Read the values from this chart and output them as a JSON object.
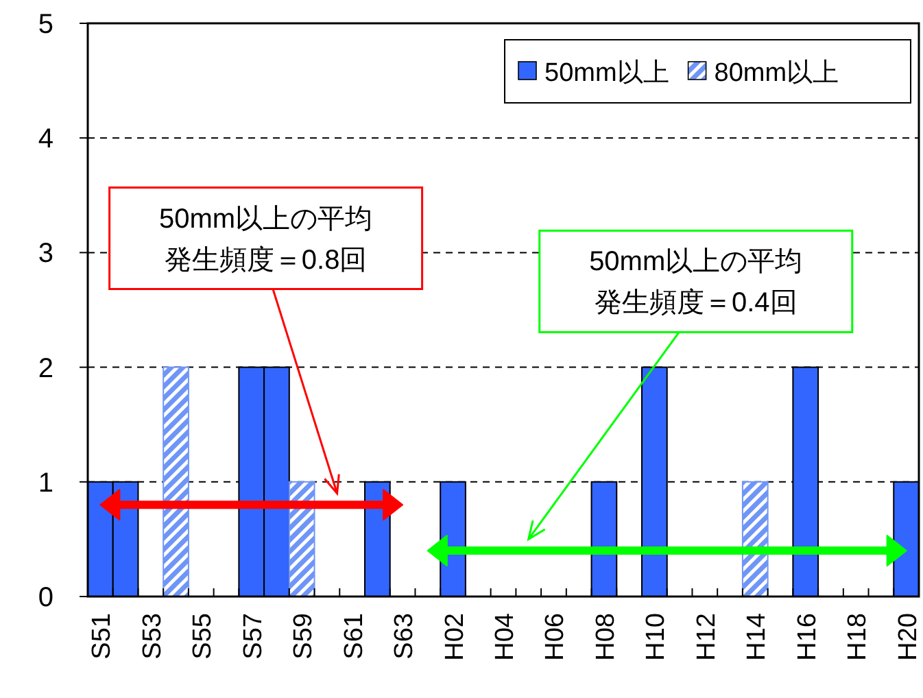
{
  "chart_data": {
    "type": "bar",
    "categories": [
      "S51",
      null,
      "S53",
      null,
      "S55",
      null,
      "S57",
      null,
      "S59",
      null,
      "S61",
      null,
      "S63",
      null,
      "H02",
      null,
      "H04",
      null,
      "H06",
      null,
      "H08",
      null,
      "H10",
      null,
      "H12",
      null,
      "H14",
      null,
      "H16",
      null,
      "H18",
      null,
      "H20"
    ],
    "series": [
      {
        "name": "50mm以上",
        "color": "#3366ff",
        "values": [
          1,
          1,
          0,
          null,
          0,
          0,
          2,
          2,
          null,
          0,
          0,
          1,
          0,
          0,
          1,
          0,
          0,
          0,
          0,
          0,
          1,
          0,
          2,
          0,
          0,
          0,
          null,
          0,
          2,
          0,
          0,
          0,
          1
        ]
      },
      {
        "name": "80mm以上",
        "color": "#6f95f7",
        "values": [
          null,
          null,
          null,
          2,
          null,
          null,
          null,
          null,
          1,
          null,
          null,
          null,
          null,
          null,
          null,
          null,
          null,
          null,
          null,
          null,
          null,
          null,
          null,
          null,
          null,
          null,
          1,
          null,
          null,
          null,
          null,
          null,
          null
        ]
      }
    ],
    "ylim": [
      0,
      5
    ],
    "yticks": [
      0,
      1,
      2,
      3,
      4,
      5
    ],
    "grid": "y",
    "legend": "top right",
    "annotations": [
      "50mm以上の平均発生頻度＝0.8回",
      "50mm以上の平均発生頻度＝0.4回"
    ]
  }
}
